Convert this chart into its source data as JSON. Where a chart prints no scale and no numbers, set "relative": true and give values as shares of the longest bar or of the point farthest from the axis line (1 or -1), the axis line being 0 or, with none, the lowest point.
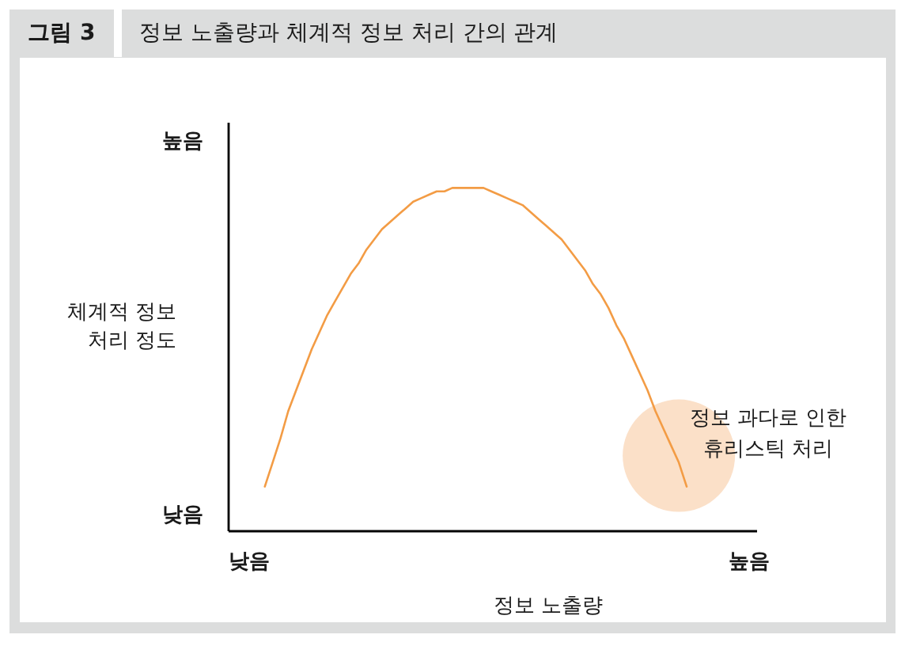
{
  "chart_data": {
    "type": "line",
    "relative": true,
    "title": "정보 노출량과 체계적 정보 처리 간의 관계",
    "xlabel": "정보 노출량",
    "ylabel": "체계적 정보\n처리 정도",
    "annotations": [
      "그림 3",
      "높음",
      "낮음",
      "정보 과다로 인한\n휴리스틱 처리"
    ],
    "categories": [
      "낮음",
      null,
      null,
      null,
      null,
      null,
      null,
      null,
      null,
      null,
      null,
      null,
      null,
      null,
      null,
      null,
      null,
      null,
      null,
      null,
      null,
      null,
      null,
      null,
      null,
      null,
      null,
      null,
      null,
      null,
      null,
      null,
      null,
      null,
      null,
      null,
      null,
      null,
      null,
      null,
      null,
      null,
      null,
      null,
      null,
      null,
      null,
      null,
      null,
      null,
      null,
      null,
      null,
      null,
      null,
      null,
      null,
      null,
      null,
      null,
      null,
      null,
      null,
      null,
      "높음"
    ],
    "series": [
      {
        "type": "bubble",
        "color": "#fbe0c8",
        "values": [
          null,
          null,
          null,
          null,
          null,
          null,
          null,
          null,
          null,
          null,
          null,
          null,
          null,
          null,
          null,
          null,
          null,
          null,
          null,
          null,
          null,
          null,
          null,
          null,
          null,
          null,
          null,
          null,
          null,
          null,
          null,
          null,
          null,
          null,
          null,
          null,
          null,
          null,
          null,
          null,
          null,
          null,
          null,
          null,
          null,
          null,
          null,
          null,
          null,
          null,
          null,
          null,
          null,
          null,
          null,
          0.22,
          null,
          null,
          null,
          null,
          null,
          null,
          null,
          null,
          null
        ],
        "sizes": [
          null,
          null,
          null,
          null,
          null,
          null,
          null,
          null,
          null,
          null,
          null,
          null,
          null,
          null,
          null,
          null,
          null,
          null,
          null,
          null,
          null,
          null,
          null,
          null,
          null,
          null,
          null,
          null,
          null,
          null,
          null,
          null,
          null,
          null,
          null,
          null,
          null,
          null,
          null,
          null,
          null,
          null,
          null,
          null,
          null,
          null,
          null,
          null,
          null,
          null,
          null,
          null,
          null,
          null,
          null,
          1,
          null,
          null,
          null,
          null,
          null,
          null,
          null,
          null,
          null
        ]
      },
      {
        "color": "#f39c45",
        "values": [
          null,
          null,
          0.13,
          0.2,
          0.27,
          0.35,
          0.41,
          0.47,
          0.53,
          0.58,
          0.63,
          0.67,
          0.71,
          0.75,
          0.78,
          0.82,
          0.85,
          0.88,
          0.9,
          0.92,
          0.94,
          0.96,
          0.97,
          0.98,
          0.99,
          0.99,
          1.0,
          1.0,
          1.0,
          1.0,
          1.0,
          0.99,
          0.98,
          0.97,
          0.96,
          0.95,
          0.93,
          0.91,
          0.89,
          0.87,
          0.85,
          0.82,
          0.79,
          0.76,
          0.72,
          0.69,
          0.65,
          0.6,
          0.56,
          0.51,
          0.46,
          0.41,
          0.35,
          0.3,
          0.25,
          0.2,
          0.13,
          null,
          null,
          null,
          null,
          null,
          null,
          null,
          null
        ]
      }
    ]
  }
}
